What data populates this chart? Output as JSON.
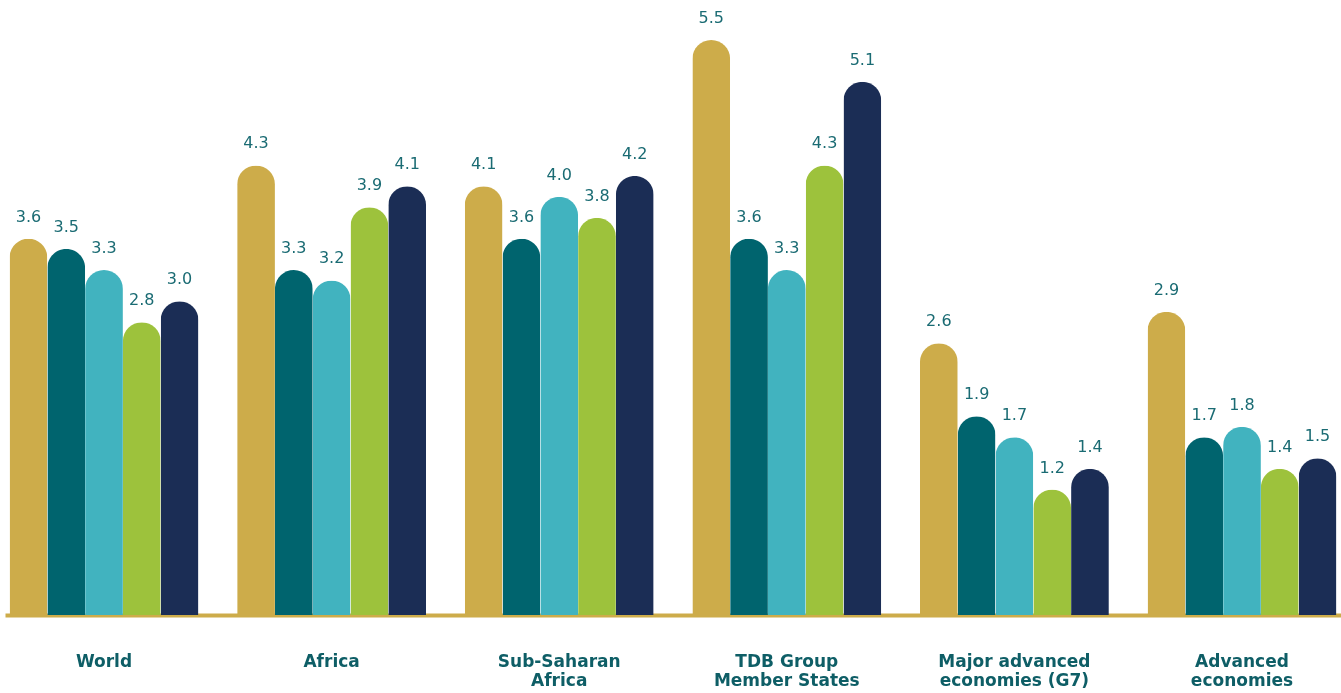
{
  "chart_data": {
    "type": "bar",
    "categories": [
      "World",
      "Africa",
      "Sub-Saharan Africa",
      "TDB Group Member States",
      "Major advanced economies (G7)",
      "Advanced economies"
    ],
    "series": [
      {
        "color": "#cdac4a",
        "values": [
          3.6,
          4.3,
          4.1,
          5.5,
          2.6,
          2.9
        ],
        "value_labels": [
          "3.6",
          "4.3",
          "4.1",
          "5.5",
          "2.6",
          "2.9"
        ]
      },
      {
        "color": "#00646e",
        "values": [
          3.5,
          3.3,
          3.6,
          3.6,
          1.9,
          1.7
        ],
        "value_labels": [
          "3.5",
          "3.3",
          "3.6",
          "3.6",
          "1.9",
          "1.7"
        ]
      },
      {
        "color": "#41b3bf",
        "values": [
          3.3,
          3.2,
          4.0,
          3.3,
          1.7,
          1.8
        ],
        "value_labels": [
          "3.3",
          "3.2",
          "4.0",
          "3.3",
          "1.7",
          "1.8"
        ]
      },
      {
        "color": "#9dc23c",
        "values": [
          2.8,
          3.9,
          3.8,
          4.3,
          1.2,
          1.4
        ],
        "value_labels": [
          "2.8",
          "3.9",
          "3.8",
          "4.3",
          "1.2",
          "1.4"
        ]
      },
      {
        "color": "#1b2d55",
        "values": [
          3.0,
          4.1,
          4.2,
          5.1,
          1.4,
          1.5
        ],
        "value_labels": [
          "3.0",
          "4.1",
          "4.2",
          "5.1",
          "1.4",
          "1.5"
        ]
      }
    ],
    "grid": false,
    "legend": false
  }
}
